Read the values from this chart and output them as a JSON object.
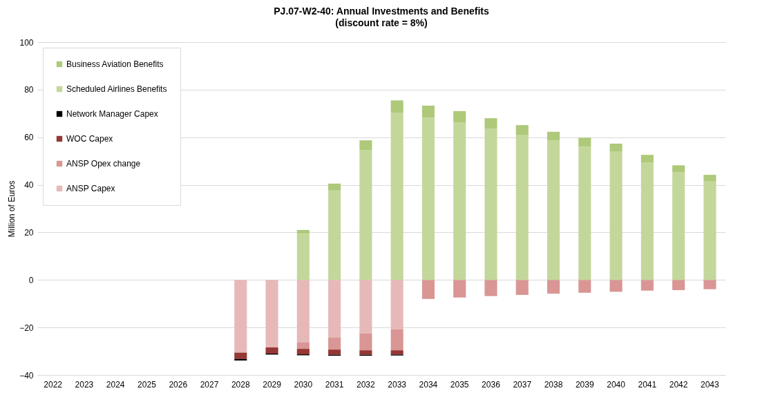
{
  "chart_data": {
    "type": "bar",
    "title": "PJ.07-W2-40: Annual Investments and Benefits",
    "subtitle": "(discount rate = 8%)",
    "ylabel": "Million of Euros",
    "categories": [
      "2022",
      "2023",
      "2024",
      "2025",
      "2026",
      "2027",
      "2028",
      "2029",
      "2030",
      "2031",
      "2032",
      "2033",
      "2034",
      "2035",
      "2036",
      "2037",
      "2038",
      "2039",
      "2040",
      "2041",
      "2042",
      "2043"
    ],
    "stacked": true,
    "ylim": [
      -40,
      100
    ],
    "yticks": [
      -40,
      -20,
      0,
      20,
      40,
      60,
      80,
      100
    ],
    "grid": "y",
    "legend": "top left",
    "series": [
      {
        "name": "ANSP Capex",
        "color": "#e6b9b8",
        "values": [
          null,
          null,
          null,
          null,
          null,
          null,
          -30.6,
          -28.4,
          -26.2,
          -24.3,
          -22.5,
          -20.7,
          null,
          null,
          null,
          null,
          null,
          null,
          null,
          null,
          null,
          null
        ]
      },
      {
        "name": "ANSP Opex change",
        "color": "#d99694",
        "values": [
          null,
          null,
          null,
          null,
          null,
          null,
          null,
          null,
          -2.8,
          -5.0,
          -7.1,
          -8.9,
          -8.0,
          -7.4,
          -6.8,
          -6.3,
          -5.8,
          -5.4,
          -5.0,
          -4.5,
          -4.3,
          -3.9
        ]
      },
      {
        "name": "WOC Capex",
        "color": "#953735",
        "values": [
          null,
          null,
          null,
          null,
          null,
          null,
          -2.7,
          -2.6,
          -2.3,
          -2.2,
          -1.9,
          -1.8,
          null,
          null,
          null,
          null,
          null,
          null,
          null,
          null,
          null,
          null
        ]
      },
      {
        "name": "Network Manager Capex",
        "color": "#000000",
        "values": [
          null,
          null,
          null,
          null,
          null,
          null,
          -0.6,
          -0.4,
          -0.4,
          -0.4,
          -0.4,
          -0.4,
          null,
          null,
          null,
          null,
          null,
          null,
          null,
          null,
          null,
          null
        ]
      },
      {
        "name": "Scheduled Airlines Benefits",
        "color": "#c4d79b",
        "values": [
          null,
          null,
          null,
          null,
          null,
          null,
          null,
          null,
          19.4,
          37.6,
          54.5,
          70.2,
          68.2,
          66.3,
          63.5,
          60.9,
          58.6,
          56.0,
          53.9,
          49.3,
          45.3,
          41.4
        ]
      },
      {
        "name": "Business Aviation Benefits",
        "color": "#aec97a",
        "values": [
          null,
          null,
          null,
          null,
          null,
          null,
          null,
          null,
          1.6,
          2.9,
          4.2,
          5.3,
          5.1,
          4.7,
          4.5,
          4.2,
          3.7,
          3.8,
          3.4,
          3.3,
          2.9,
          2.8
        ]
      }
    ]
  }
}
